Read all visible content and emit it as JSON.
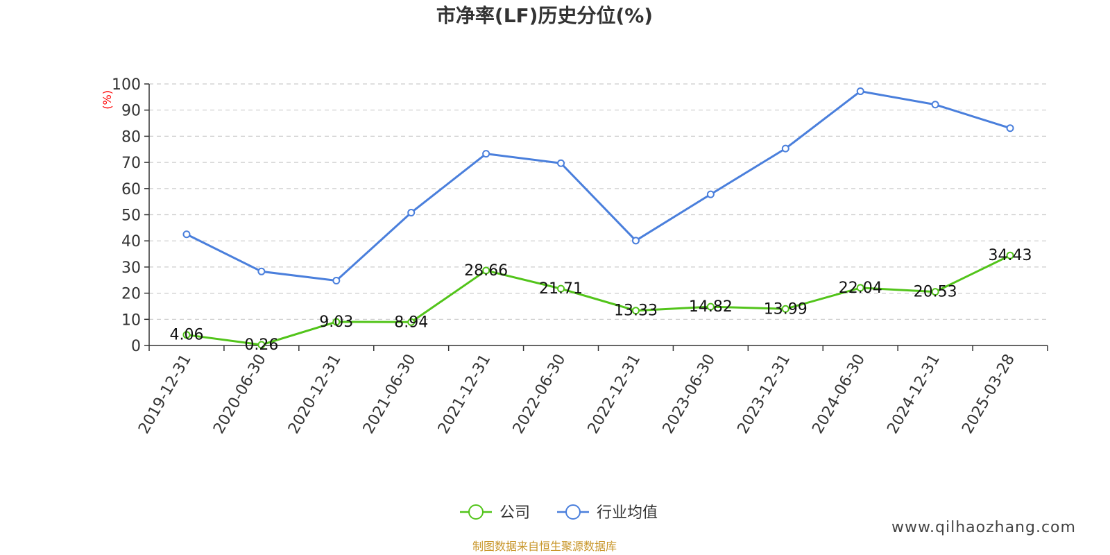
{
  "chart_data": {
    "type": "line",
    "title": "市净率(LF)历史分位(%)",
    "ylabel": "(%)",
    "xlabel": "",
    "ylim": [
      0,
      100
    ],
    "yticks": [
      0,
      10,
      20,
      30,
      40,
      50,
      60,
      70,
      80,
      90,
      100
    ],
    "categories": [
      "2019-12-31",
      "2020-06-30",
      "2020-12-31",
      "2021-06-30",
      "2021-12-31",
      "2022-06-30",
      "2022-12-31",
      "2023-06-30",
      "2023-12-31",
      "2024-06-30",
      "2024-12-31",
      "2025-03-28"
    ],
    "series": [
      {
        "name": "公司",
        "color": "#52c41a",
        "values": [
          4.06,
          0.26,
          9.03,
          8.94,
          28.66,
          21.71,
          13.33,
          14.82,
          13.99,
          22.04,
          20.53,
          34.43
        ],
        "labels": [
          "4.06",
          "0.26",
          "9.03",
          "8.94",
          "28.66",
          "21.71",
          "13.33",
          "14.82",
          "13.99",
          "22.04",
          "20.53",
          "34.43"
        ]
      },
      {
        "name": "行业均值",
        "color": "#4a7fdc",
        "values": [
          42.5,
          28.3,
          24.8,
          50.8,
          73.3,
          69.7,
          40.1,
          57.8,
          75.3,
          97.2,
          92.1,
          83.1
        ]
      }
    ],
    "grid": true,
    "legend_position": "bottom-center",
    "unit_color": "#ff0000"
  },
  "source_text": "制图数据来自恒生聚源数据库",
  "source_color": "#c8962a",
  "watermark": "www.qilhaozhang.com"
}
